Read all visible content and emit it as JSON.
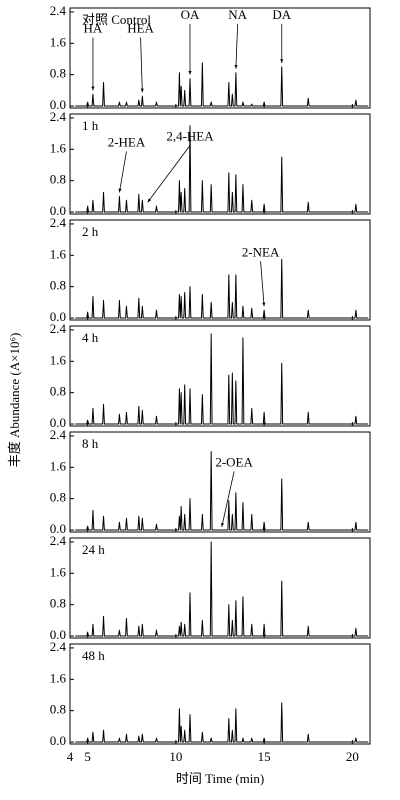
{
  "y_label": "丰度 Abundance (A×10⁶)",
  "chart_data": [
    {
      "type": "line",
      "label": "对照 Control",
      "annotations": [
        "HA",
        "HEA",
        "OA",
        "NA",
        "DA"
      ],
      "color": "#000000",
      "xlim": [
        4,
        21
      ],
      "ylim": [
        -0.05,
        2.5
      ],
      "yticks": [
        {
          "value": 0,
          "label": "0.0"
        },
        0.8,
        1.6,
        2.4
      ],
      "x": [
        4.3,
        4.95,
        5,
        5.05,
        5.25,
        5.3,
        5.35,
        5.85,
        5.9,
        5.95,
        6.75,
        6.8,
        6.85,
        7.15,
        7.2,
        7.25,
        7.85,
        7.9,
        7.95,
        8.05,
        8.1,
        8.15,
        8.85,
        8.9,
        8.95,
        10.15,
        10.2,
        10.25,
        10.25,
        10.3,
        10.35,
        10.45,
        10.5,
        10.55,
        10.75,
        10.8,
        10.85,
        11.45,
        11.5,
        11.55,
        11.95,
        12,
        12.05,
        12.95,
        13,
        13.05,
        13.15,
        13.2,
        13.25,
        13.35,
        13.4,
        13.45,
        13.75,
        13.8,
        13.85,
        14.25,
        14.3,
        14.35,
        14.95,
        15,
        15.05,
        15.95,
        16,
        16.05,
        17.45,
        17.5,
        17.55,
        20.15,
        20.2,
        20.25,
        20.9
      ],
      "values": [
        0,
        0,
        0.1,
        0,
        0,
        0.3,
        0,
        0,
        0.6,
        0,
        0,
        0.1,
        0,
        0,
        0.1,
        0,
        0,
        0.15,
        0,
        0,
        0.25,
        0,
        0,
        0.1,
        0,
        0,
        0.85,
        0,
        0,
        0.5,
        0,
        0,
        0.4,
        0,
        0,
        0.7,
        0,
        0,
        1.1,
        0,
        0,
        0.1,
        0,
        0,
        0.6,
        0,
        0,
        0.3,
        0,
        0,
        0.85,
        0,
        0,
        0.1,
        0,
        0,
        0.05,
        0,
        0,
        0.1,
        0,
        0,
        1.0,
        0,
        0,
        0.2,
        0,
        0,
        0.15,
        0,
        0
      ]
    },
    {
      "type": "line",
      "label": "1 h",
      "annotations": [
        "2-HEA",
        "2,4-HEA"
      ],
      "color": "#000000",
      "xlim": [
        4,
        21
      ],
      "ylim": [
        -0.05,
        2.5
      ],
      "yticks": [
        {
          "value": 0,
          "label": "0.0"
        },
        0.8,
        1.6,
        2.4
      ],
      "x": [
        4.3,
        4.95,
        5,
        5.05,
        5.25,
        5.3,
        5.35,
        5.85,
        5.9,
        5.95,
        6.75,
        6.8,
        6.85,
        7.15,
        7.2,
        7.25,
        7.85,
        7.9,
        7.95,
        8.05,
        8.1,
        8.15,
        8.85,
        8.9,
        8.95,
        10.15,
        10.2,
        10.25,
        10.25,
        10.3,
        10.35,
        10.45,
        10.5,
        10.55,
        10.75,
        10.8,
        10.85,
        11.45,
        11.5,
        11.55,
        11.95,
        12,
        12.05,
        12.95,
        13,
        13.05,
        13.15,
        13.2,
        13.25,
        13.35,
        13.4,
        13.45,
        13.75,
        13.8,
        13.85,
        14.25,
        14.3,
        14.35,
        14.95,
        15,
        15.05,
        15.95,
        16,
        16.05,
        17.45,
        17.5,
        17.55,
        20.15,
        20.2,
        20.25,
        20.9
      ],
      "values": [
        0,
        0,
        0.15,
        0,
        0,
        0.3,
        0,
        0,
        0.5,
        0,
        0,
        0.4,
        0,
        0,
        0.3,
        0,
        0,
        0.45,
        0,
        0,
        0.3,
        0,
        0,
        0.15,
        0,
        0,
        0.8,
        0,
        0,
        0.5,
        0,
        0,
        0.6,
        0,
        0,
        2.2,
        0,
        0,
        0.8,
        0,
        0,
        0.7,
        0,
        0,
        1.0,
        0,
        0,
        0.5,
        0,
        0,
        0.95,
        0,
        0,
        0.7,
        0,
        0,
        0.3,
        0,
        0,
        0.2,
        0,
        0,
        1.4,
        0,
        0,
        0.25,
        0,
        0,
        0.2,
        0,
        0
      ]
    },
    {
      "type": "line",
      "label": "2 h",
      "annotations": [
        "2-NEA"
      ],
      "color": "#000000",
      "xlim": [
        4,
        21
      ],
      "ylim": [
        -0.05,
        2.5
      ],
      "yticks": [
        {
          "value": 0,
          "label": "0.0"
        },
        0.8,
        1.6,
        2.4
      ],
      "x": [
        4.3,
        4.95,
        5,
        5.05,
        5.25,
        5.3,
        5.35,
        5.85,
        5.9,
        5.95,
        6.75,
        6.8,
        6.85,
        7.15,
        7.2,
        7.25,
        7.85,
        7.9,
        7.95,
        8.05,
        8.1,
        8.15,
        8.85,
        8.9,
        8.95,
        10.15,
        10.2,
        10.25,
        10.25,
        10.3,
        10.35,
        10.45,
        10.5,
        10.55,
        10.75,
        10.8,
        10.85,
        11.45,
        11.5,
        11.55,
        11.95,
        12,
        12.05,
        12.95,
        13,
        13.05,
        13.15,
        13.2,
        13.25,
        13.35,
        13.4,
        13.45,
        13.75,
        13.8,
        13.85,
        14.25,
        14.3,
        14.35,
        14.95,
        15,
        15.05,
        15.95,
        16,
        16.05,
        17.45,
        17.5,
        17.55,
        20.15,
        20.2,
        20.25,
        20.9
      ],
      "values": [
        0,
        0,
        0.15,
        0,
        0,
        0.55,
        0,
        0,
        0.45,
        0,
        0,
        0.45,
        0,
        0,
        0.3,
        0,
        0,
        0.5,
        0,
        0,
        0.3,
        0,
        0,
        0.2,
        0,
        0,
        0.6,
        0,
        0,
        0.55,
        0,
        0,
        0.65,
        0,
        0,
        0.8,
        0,
        0,
        0.6,
        0,
        0,
        0.4,
        0,
        0,
        1.1,
        0,
        0,
        0.4,
        0,
        0,
        1.1,
        0,
        0,
        0.3,
        0,
        0,
        0.25,
        0,
        0,
        0.2,
        0,
        0,
        1.5,
        0,
        0,
        0.2,
        0,
        0,
        0.2,
        0,
        0
      ]
    },
    {
      "type": "line",
      "label": "4 h",
      "annotations": [],
      "color": "#000000",
      "xlim": [
        4,
        21
      ],
      "ylim": [
        -0.05,
        2.5
      ],
      "yticks": [
        {
          "value": 0,
          "label": "0.0"
        },
        0.8,
        1.6,
        2.4
      ],
      "x": [
        4.3,
        4.95,
        5,
        5.05,
        5.25,
        5.3,
        5.35,
        5.85,
        5.9,
        5.95,
        6.75,
        6.8,
        6.85,
        7.15,
        7.2,
        7.25,
        7.85,
        7.9,
        7.95,
        8.05,
        8.1,
        8.15,
        8.85,
        8.9,
        8.95,
        10.15,
        10.2,
        10.25,
        10.25,
        10.3,
        10.35,
        10.45,
        10.5,
        10.55,
        10.75,
        10.8,
        10.85,
        11.45,
        11.5,
        11.55,
        11.95,
        12,
        12.05,
        12.95,
        13,
        13.05,
        13.15,
        13.2,
        13.25,
        13.35,
        13.4,
        13.45,
        13.75,
        13.8,
        13.85,
        14.25,
        14.3,
        14.35,
        14.95,
        15,
        15.05,
        15.95,
        16,
        16.05,
        17.45,
        17.5,
        17.55,
        20.15,
        20.2,
        20.25,
        20.9
      ],
      "values": [
        0,
        0,
        0.1,
        0,
        0,
        0.4,
        0,
        0,
        0.5,
        0,
        0,
        0.25,
        0,
        0,
        0.3,
        0,
        0,
        0.45,
        0,
        0,
        0.35,
        0,
        0,
        0.2,
        0,
        0,
        0.9,
        0,
        0,
        0.8,
        0,
        0,
        1.0,
        0,
        0,
        0.9,
        0,
        0,
        0.75,
        0,
        0,
        2.3,
        0,
        0,
        1.25,
        0,
        0,
        1.3,
        0,
        0,
        1.1,
        0,
        0,
        2.2,
        0,
        0,
        0.4,
        0,
        0,
        0.3,
        0,
        0,
        1.55,
        0,
        0,
        0.3,
        0,
        0,
        0.2,
        0,
        0
      ]
    },
    {
      "type": "line",
      "label": "8 h",
      "annotations": [
        "2-OEA"
      ],
      "color": "#000000",
      "xlim": [
        4,
        21
      ],
      "ylim": [
        -0.05,
        2.5
      ],
      "yticks": [
        {
          "value": 0,
          "label": "0.0"
        },
        0.8,
        1.6,
        2.4
      ],
      "x": [
        4.3,
        4.95,
        5,
        5.05,
        5.25,
        5.3,
        5.35,
        5.85,
        5.9,
        5.95,
        6.75,
        6.8,
        6.85,
        7.15,
        7.2,
        7.25,
        7.85,
        7.9,
        7.95,
        8.05,
        8.1,
        8.15,
        8.85,
        8.9,
        8.95,
        10.15,
        10.2,
        10.25,
        10.25,
        10.3,
        10.35,
        10.45,
        10.5,
        10.55,
        10.75,
        10.8,
        10.85,
        11.45,
        11.5,
        11.55,
        11.95,
        12,
        12.05,
        12.95,
        13,
        13.05,
        13.15,
        13.2,
        13.25,
        13.35,
        13.4,
        13.45,
        13.75,
        13.8,
        13.85,
        14.25,
        14.3,
        14.35,
        14.95,
        15,
        15.05,
        15.95,
        16,
        16.05,
        17.45,
        17.5,
        17.55,
        20.15,
        20.2,
        20.25,
        20.9
      ],
      "values": [
        0,
        0,
        0.1,
        0,
        0,
        0.5,
        0,
        0,
        0.35,
        0,
        0,
        0.2,
        0,
        0,
        0.3,
        0,
        0,
        0.35,
        0,
        0,
        0.3,
        0,
        0,
        0.15,
        0,
        0,
        0.35,
        0,
        0,
        0.6,
        0,
        0,
        0.4,
        0,
        0,
        0.8,
        0,
        0,
        0.4,
        0,
        0,
        2.0,
        0,
        0,
        0.75,
        0,
        0,
        0.4,
        0,
        0,
        0.95,
        0,
        0,
        0.7,
        0,
        0,
        0.4,
        0,
        0,
        0.2,
        0,
        0,
        1.3,
        0,
        0,
        0.2,
        0,
        0,
        0.2,
        0,
        0
      ]
    },
    {
      "type": "line",
      "label": "24 h",
      "annotations": [],
      "color": "#000000",
      "xlim": [
        4,
        21
      ],
      "ylim": [
        -0.05,
        2.5
      ],
      "yticks": [
        {
          "value": 0,
          "label": "0.0"
        },
        0.8,
        1.6,
        2.4
      ],
      "x": [
        4.3,
        4.95,
        5,
        5.05,
        5.25,
        5.3,
        5.35,
        5.85,
        5.9,
        5.95,
        6.75,
        6.8,
        6.85,
        7.15,
        7.2,
        7.25,
        7.85,
        7.9,
        7.95,
        8.05,
        8.1,
        8.15,
        8.85,
        8.9,
        8.95,
        10.15,
        10.2,
        10.25,
        10.25,
        10.3,
        10.35,
        10.45,
        10.5,
        10.55,
        10.75,
        10.8,
        10.85,
        11.45,
        11.5,
        11.55,
        11.95,
        12,
        12.05,
        12.95,
        13,
        13.05,
        13.15,
        13.2,
        13.25,
        13.35,
        13.4,
        13.45,
        13.75,
        13.8,
        13.85,
        14.25,
        14.3,
        14.35,
        14.95,
        15,
        15.05,
        15.95,
        16,
        16.05,
        17.45,
        17.5,
        17.55,
        20.15,
        20.2,
        20.25,
        20.9
      ],
      "values": [
        0,
        0,
        0.1,
        0,
        0,
        0.3,
        0,
        0,
        0.5,
        0,
        0,
        0.15,
        0,
        0,
        0.45,
        0,
        0,
        0.25,
        0,
        0,
        0.3,
        0,
        0,
        0.15,
        0,
        0,
        0.25,
        0,
        0,
        0.35,
        0,
        0,
        0.3,
        0,
        0,
        1.1,
        0,
        0,
        0.4,
        0,
        0,
        2.4,
        0,
        0,
        0.8,
        0,
        0,
        0.4,
        0,
        0,
        0.9,
        0,
        0,
        1.0,
        0,
        0,
        0.3,
        0,
        0,
        0.3,
        0,
        0,
        1.4,
        0,
        0,
        0.25,
        0,
        0,
        0.2,
        0,
        0
      ]
    },
    {
      "type": "line",
      "label": "48 h",
      "annotations": [],
      "color": "#000000",
      "x_label": "时间 Time (min)",
      "xlim": [
        4,
        21
      ],
      "xticks": [
        4,
        5,
        10,
        15,
        20
      ],
      "ylim": [
        -0.05,
        2.5
      ],
      "yticks": [
        {
          "value": 0,
          "label": "0.0"
        },
        0.8,
        1.6,
        2.4
      ],
      "x": [
        4.3,
        4.95,
        5,
        5.05,
        5.25,
        5.3,
        5.35,
        5.85,
        5.9,
        5.95,
        6.75,
        6.8,
        6.85,
        7.15,
        7.2,
        7.25,
        7.85,
        7.9,
        7.95,
        8.05,
        8.1,
        8.15,
        8.85,
        8.9,
        8.95,
        10.15,
        10.2,
        10.25,
        10.25,
        10.3,
        10.35,
        10.45,
        10.5,
        10.55,
        10.75,
        10.8,
        10.85,
        11.45,
        11.5,
        11.55,
        11.95,
        12,
        12.05,
        12.95,
        13,
        13.05,
        13.15,
        13.2,
        13.25,
        13.35,
        13.4,
        13.45,
        13.75,
        13.8,
        13.85,
        14.25,
        14.3,
        14.35,
        14.95,
        15,
        15.05,
        15.95,
        16,
        16.05,
        17.45,
        17.5,
        17.55,
        20.15,
        20.2,
        20.25,
        20.9
      ],
      "values": [
        0,
        0,
        0.1,
        0,
        0,
        0.25,
        0,
        0,
        0.3,
        0,
        0,
        0.1,
        0,
        0,
        0.2,
        0,
        0,
        0.15,
        0,
        0,
        0.2,
        0,
        0,
        0.1,
        0,
        0,
        0.85,
        0,
        0,
        0.4,
        0,
        0,
        0.3,
        0,
        0,
        0.7,
        0,
        0,
        0.25,
        0,
        0,
        0.1,
        0,
        0,
        0.6,
        0,
        0,
        0.3,
        0,
        0,
        0.85,
        0,
        0,
        0.1,
        0,
        0,
        0.1,
        0,
        0,
        0.1,
        0,
        0,
        1.0,
        0,
        0,
        0.2,
        0,
        0,
        0.1,
        0,
        0
      ]
    }
  ]
}
